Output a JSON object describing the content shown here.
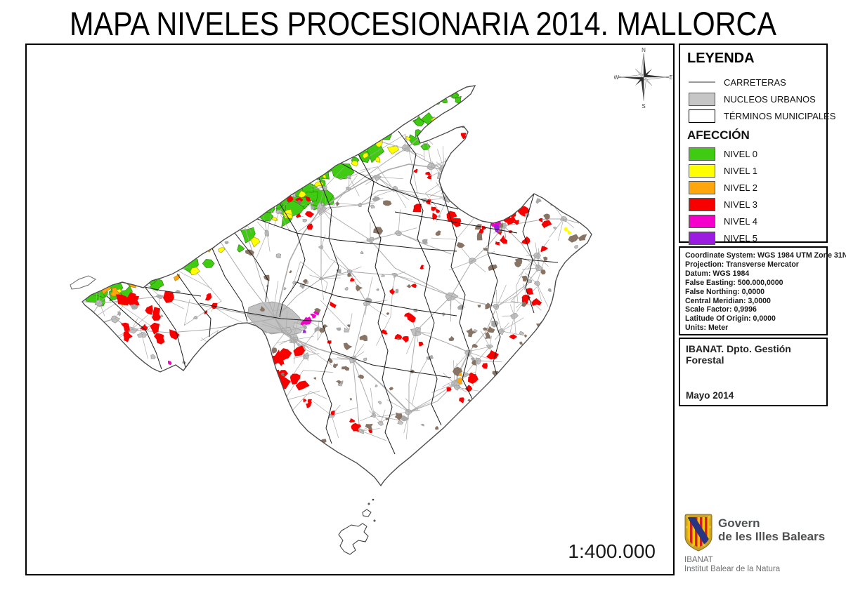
{
  "title": "MAPA NIVELES PROCESIONARIA 2014. MALLORCA",
  "scale_text": "1:400.000",
  "compass": {
    "n": "N",
    "s": "S",
    "e": "E",
    "w": "W"
  },
  "legend": {
    "heading": "LEYENDA",
    "items": [
      {
        "label": "CARRETERAS"
      },
      {
        "label": "NUCLEOS URBANOS"
      },
      {
        "label": "TÉRMINOS MUNICIPALES"
      }
    ],
    "affection_heading": "AFECCIÓN",
    "levels": [
      {
        "label": "NIVEL 0",
        "color": "#3ECB11"
      },
      {
        "label": "NIVEL 1",
        "color": "#FFFF00"
      },
      {
        "label": "NIVEL 2",
        "color": "#FFA60D"
      },
      {
        "label": "NIVEL 3",
        "color": "#F90000"
      },
      {
        "label": "NIVEL 4",
        "color": "#F500CB"
      },
      {
        "label": "NIVEL 5",
        "color": "#9B1BE0"
      }
    ]
  },
  "projection_info": {
    "lines": [
      "Coordinate System: WGS 1984 UTM Zone 31N",
      "Projection: Transverse Mercator",
      "Datum: WGS 1984",
      "False Easting: 500.000,0000",
      "False Northing: 0,0000",
      "Central Meridian: 3,0000",
      "Scale Factor: 0,9996",
      "Latitude Of Origin: 0,0000",
      "Units: Meter"
    ]
  },
  "credits": {
    "department": "IBANAT. Dpto. Gestión Forestal",
    "date": "Mayo 2014"
  },
  "logo": {
    "line1": "Govern",
    "line2": "de les Illes Balears",
    "line3": "IBANAT",
    "line4": "Institut Balear de la Natura"
  },
  "map_colors": {
    "roads": "#ABABAB",
    "urban": "#C2C2C2",
    "urban_stroke": "#8F8F8F",
    "boundary": "#1C1C1C",
    "coast": "#4D4D4D",
    "dark_blob": "#877465"
  }
}
